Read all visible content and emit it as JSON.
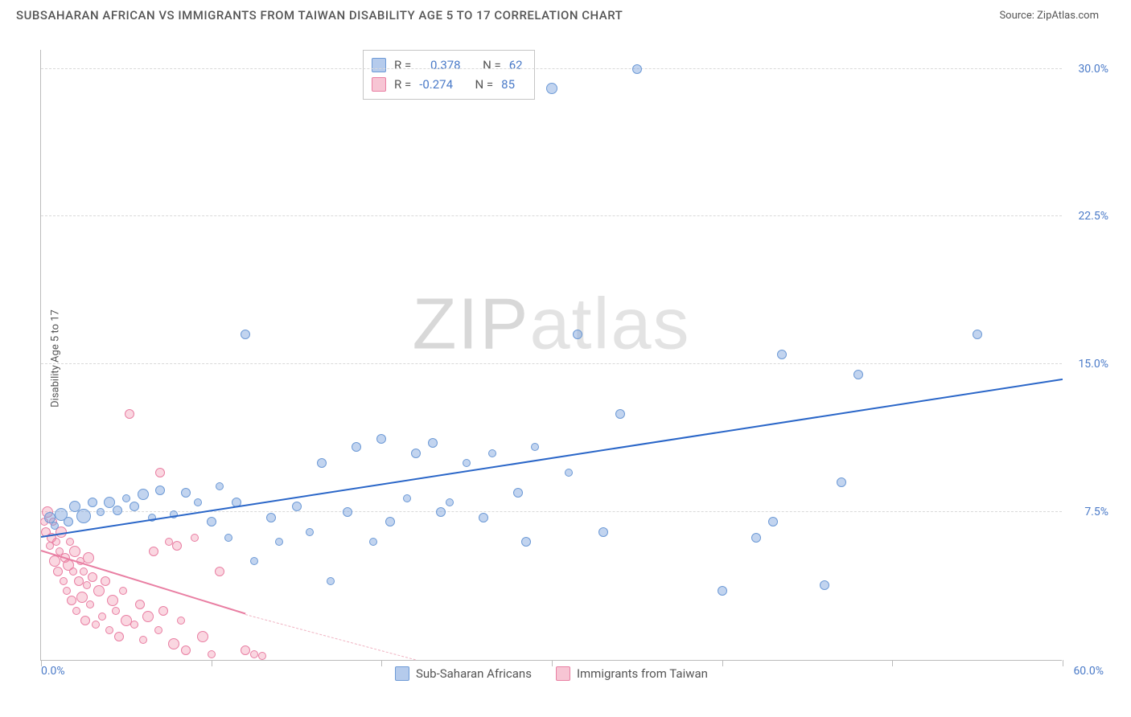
{
  "title": "SUBSAHARAN AFRICAN VS IMMIGRANTS FROM TAIWAN DISABILITY AGE 5 TO 17 CORRELATION CHART",
  "source_label": "Source:",
  "source_name": "ZipAtlas.com",
  "y_axis_label": "Disability Age 5 to 17",
  "watermark_zip": "ZIP",
  "watermark_atlas": "atlas",
  "chart": {
    "type": "scatter",
    "xlim": [
      0,
      60
    ],
    "ylim": [
      0,
      31
    ],
    "x_ticks": [
      0,
      10,
      20,
      30,
      40,
      50,
      60
    ],
    "y_gridlines": [
      7.5,
      15.0,
      22.5,
      30.0
    ],
    "y_tick_labels": [
      "7.5%",
      "15.0%",
      "22.5%",
      "30.0%"
    ],
    "x_origin_label": "0.0%",
    "x_max_label": "60.0%",
    "background_color": "#ffffff",
    "grid_color": "#d9d9d9",
    "axis_color": "#bbbbbb",
    "tick_label_color": "#4a7ac8",
    "marker_size_range": [
      8,
      18
    ]
  },
  "series": {
    "blue": {
      "label": "Sub-Saharan Africans",
      "color_fill": "#78a0dc",
      "color_stroke": "#6d9ad6",
      "trend_color": "#2a66c8",
      "r_value": "0.378",
      "n_value": "62",
      "trend": {
        "x1": 0,
        "y1": 6.2,
        "x2": 60,
        "y2": 14.2
      },
      "points": [
        {
          "x": 0.5,
          "y": 7.2,
          "s": 14
        },
        {
          "x": 0.8,
          "y": 6.8,
          "s": 10
        },
        {
          "x": 1.2,
          "y": 7.4,
          "s": 16
        },
        {
          "x": 1.6,
          "y": 7.0,
          "s": 12
        },
        {
          "x": 2.0,
          "y": 7.8,
          "s": 14
        },
        {
          "x": 2.5,
          "y": 7.3,
          "s": 18
        },
        {
          "x": 3.0,
          "y": 8.0,
          "s": 12
        },
        {
          "x": 3.5,
          "y": 7.5,
          "s": 10
        },
        {
          "x": 4.0,
          "y": 8.0,
          "s": 14
        },
        {
          "x": 4.5,
          "y": 7.6,
          "s": 12
        },
        {
          "x": 5.0,
          "y": 8.2,
          "s": 10
        },
        {
          "x": 5.5,
          "y": 7.8,
          "s": 12
        },
        {
          "x": 6.0,
          "y": 8.4,
          "s": 14
        },
        {
          "x": 6.5,
          "y": 7.2,
          "s": 10
        },
        {
          "x": 7.0,
          "y": 8.6,
          "s": 12
        },
        {
          "x": 7.8,
          "y": 7.4,
          "s": 10
        },
        {
          "x": 8.5,
          "y": 8.5,
          "s": 12
        },
        {
          "x": 9.2,
          "y": 8.0,
          "s": 10
        },
        {
          "x": 10.0,
          "y": 7.0,
          "s": 12
        },
        {
          "x": 10.5,
          "y": 8.8,
          "s": 10
        },
        {
          "x": 11.0,
          "y": 6.2,
          "s": 10
        },
        {
          "x": 11.5,
          "y": 8.0,
          "s": 12
        },
        {
          "x": 12.0,
          "y": 16.5,
          "s": 12
        },
        {
          "x": 12.5,
          "y": 5.0,
          "s": 10
        },
        {
          "x": 13.5,
          "y": 7.2,
          "s": 12
        },
        {
          "x": 14.0,
          "y": 6.0,
          "s": 10
        },
        {
          "x": 15.0,
          "y": 7.8,
          "s": 12
        },
        {
          "x": 15.8,
          "y": 6.5,
          "s": 10
        },
        {
          "x": 16.5,
          "y": 10.0,
          "s": 12
        },
        {
          "x": 17.0,
          "y": 4.0,
          "s": 10
        },
        {
          "x": 18.0,
          "y": 7.5,
          "s": 12
        },
        {
          "x": 18.5,
          "y": 10.8,
          "s": 12
        },
        {
          "x": 19.5,
          "y": 6.0,
          "s": 10
        },
        {
          "x": 20.0,
          "y": 11.2,
          "s": 12
        },
        {
          "x": 20.5,
          "y": 7.0,
          "s": 12
        },
        {
          "x": 21.5,
          "y": 8.2,
          "s": 10
        },
        {
          "x": 22.0,
          "y": 10.5,
          "s": 12
        },
        {
          "x": 23.0,
          "y": 11.0,
          "s": 12
        },
        {
          "x": 23.5,
          "y": 7.5,
          "s": 12
        },
        {
          "x": 24.0,
          "y": 8.0,
          "s": 10
        },
        {
          "x": 25.0,
          "y": 10.0,
          "s": 10
        },
        {
          "x": 26.0,
          "y": 7.2,
          "s": 12
        },
        {
          "x": 26.5,
          "y": 10.5,
          "s": 10
        },
        {
          "x": 28.0,
          "y": 8.5,
          "s": 12
        },
        {
          "x": 28.5,
          "y": 6.0,
          "s": 12
        },
        {
          "x": 29.0,
          "y": 10.8,
          "s": 10
        },
        {
          "x": 30.0,
          "y": 29.0,
          "s": 14
        },
        {
          "x": 31.0,
          "y": 9.5,
          "s": 10
        },
        {
          "x": 31.5,
          "y": 16.5,
          "s": 12
        },
        {
          "x": 33.0,
          "y": 6.5,
          "s": 12
        },
        {
          "x": 34.0,
          "y": 12.5,
          "s": 12
        },
        {
          "x": 35.0,
          "y": 30.0,
          "s": 12
        },
        {
          "x": 40.0,
          "y": 3.5,
          "s": 12
        },
        {
          "x": 42.0,
          "y": 6.2,
          "s": 12
        },
        {
          "x": 43.0,
          "y": 7.0,
          "s": 12
        },
        {
          "x": 43.5,
          "y": 15.5,
          "s": 12
        },
        {
          "x": 46.0,
          "y": 3.8,
          "s": 12
        },
        {
          "x": 47.0,
          "y": 9.0,
          "s": 12
        },
        {
          "x": 48.0,
          "y": 14.5,
          "s": 12
        },
        {
          "x": 55.0,
          "y": 16.5,
          "s": 12
        }
      ]
    },
    "pink": {
      "label": "Immigrants from Taiwan",
      "color_fill": "#f08caa",
      "color_stroke": "#e97fa3",
      "trend_color": "#e97fa3",
      "r_value": "-0.274",
      "n_value": "85",
      "trend_solid": {
        "x1": 0,
        "y1": 5.5,
        "x2": 12,
        "y2": 2.3
      },
      "trend_dash": {
        "x1": 12,
        "y1": 2.3,
        "x2": 22,
        "y2": 0.0
      },
      "points": [
        {
          "x": 0.2,
          "y": 7.0,
          "s": 10
        },
        {
          "x": 0.3,
          "y": 6.5,
          "s": 12
        },
        {
          "x": 0.4,
          "y": 7.5,
          "s": 14
        },
        {
          "x": 0.5,
          "y": 5.8,
          "s": 10
        },
        {
          "x": 0.6,
          "y": 6.2,
          "s": 12
        },
        {
          "x": 0.7,
          "y": 7.0,
          "s": 10
        },
        {
          "x": 0.8,
          "y": 5.0,
          "s": 14
        },
        {
          "x": 0.9,
          "y": 6.0,
          "s": 10
        },
        {
          "x": 1.0,
          "y": 4.5,
          "s": 12
        },
        {
          "x": 1.1,
          "y": 5.5,
          "s": 10
        },
        {
          "x": 1.2,
          "y": 6.5,
          "s": 14
        },
        {
          "x": 1.3,
          "y": 4.0,
          "s": 10
        },
        {
          "x": 1.4,
          "y": 5.2,
          "s": 12
        },
        {
          "x": 1.5,
          "y": 3.5,
          "s": 10
        },
        {
          "x": 1.6,
          "y": 4.8,
          "s": 14
        },
        {
          "x": 1.7,
          "y": 6.0,
          "s": 10
        },
        {
          "x": 1.8,
          "y": 3.0,
          "s": 12
        },
        {
          "x": 1.9,
          "y": 4.5,
          "s": 10
        },
        {
          "x": 2.0,
          "y": 5.5,
          "s": 14
        },
        {
          "x": 2.1,
          "y": 2.5,
          "s": 10
        },
        {
          "x": 2.2,
          "y": 4.0,
          "s": 12
        },
        {
          "x": 2.3,
          "y": 5.0,
          "s": 10
        },
        {
          "x": 2.4,
          "y": 3.2,
          "s": 14
        },
        {
          "x": 2.5,
          "y": 4.5,
          "s": 10
        },
        {
          "x": 2.6,
          "y": 2.0,
          "s": 12
        },
        {
          "x": 2.7,
          "y": 3.8,
          "s": 10
        },
        {
          "x": 2.8,
          "y": 5.2,
          "s": 14
        },
        {
          "x": 2.9,
          "y": 2.8,
          "s": 10
        },
        {
          "x": 3.0,
          "y": 4.2,
          "s": 12
        },
        {
          "x": 3.2,
          "y": 1.8,
          "s": 10
        },
        {
          "x": 3.4,
          "y": 3.5,
          "s": 14
        },
        {
          "x": 3.6,
          "y": 2.2,
          "s": 10
        },
        {
          "x": 3.8,
          "y": 4.0,
          "s": 12
        },
        {
          "x": 4.0,
          "y": 1.5,
          "s": 10
        },
        {
          "x": 4.2,
          "y": 3.0,
          "s": 14
        },
        {
          "x": 4.4,
          "y": 2.5,
          "s": 10
        },
        {
          "x": 4.6,
          "y": 1.2,
          "s": 12
        },
        {
          "x": 4.8,
          "y": 3.5,
          "s": 10
        },
        {
          "x": 5.0,
          "y": 2.0,
          "s": 14
        },
        {
          "x": 5.2,
          "y": 12.5,
          "s": 12
        },
        {
          "x": 5.5,
          "y": 1.8,
          "s": 10
        },
        {
          "x": 5.8,
          "y": 2.8,
          "s": 12
        },
        {
          "x": 6.0,
          "y": 1.0,
          "s": 10
        },
        {
          "x": 6.3,
          "y": 2.2,
          "s": 14
        },
        {
          "x": 6.6,
          "y": 5.5,
          "s": 12
        },
        {
          "x": 6.9,
          "y": 1.5,
          "s": 10
        },
        {
          "x": 7.0,
          "y": 9.5,
          "s": 12
        },
        {
          "x": 7.2,
          "y": 2.5,
          "s": 12
        },
        {
          "x": 7.5,
          "y": 6.0,
          "s": 10
        },
        {
          "x": 7.8,
          "y": 0.8,
          "s": 14
        },
        {
          "x": 8.0,
          "y": 5.8,
          "s": 12
        },
        {
          "x": 8.2,
          "y": 2.0,
          "s": 10
        },
        {
          "x": 8.5,
          "y": 0.5,
          "s": 12
        },
        {
          "x": 9.0,
          "y": 6.2,
          "s": 10
        },
        {
          "x": 9.5,
          "y": 1.2,
          "s": 14
        },
        {
          "x": 10.0,
          "y": 0.3,
          "s": 10
        },
        {
          "x": 10.5,
          "y": 4.5,
          "s": 12
        },
        {
          "x": 12.0,
          "y": 0.5,
          "s": 12
        },
        {
          "x": 12.5,
          "y": 0.3,
          "s": 10
        },
        {
          "x": 13.0,
          "y": 0.2,
          "s": 10
        }
      ]
    }
  },
  "stats": {
    "r_label": "R =",
    "n_label": "N ="
  },
  "legend": {
    "blue_label": "Sub-Saharan Africans",
    "pink_label": "Immigrants from Taiwan"
  }
}
